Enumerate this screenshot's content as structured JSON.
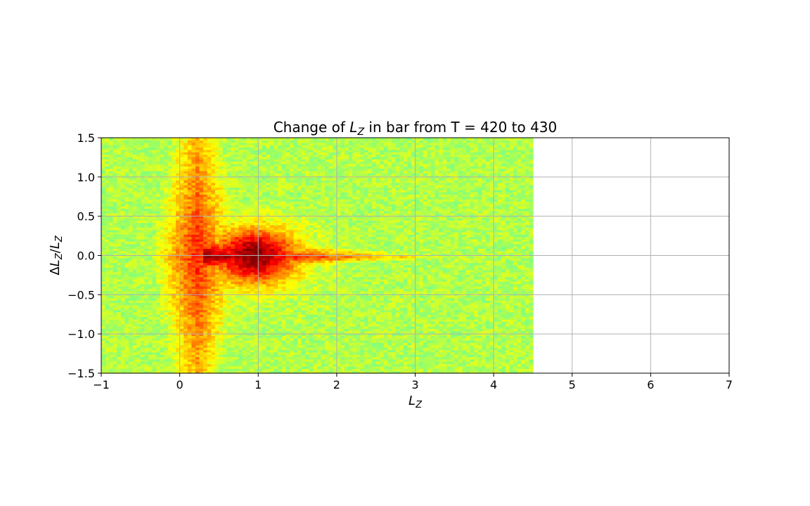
{
  "chart_data": {
    "type": "heatmap",
    "title": {
      "prefix": "Change of ",
      "var": "L",
      "sub": "Z",
      "suffix": " in bar from T = 420 to 430"
    },
    "xlabel": {
      "var": "L",
      "sub": "Z"
    },
    "ylabel": {
      "delta": "Δ",
      "var1": "L",
      "sub1": "Z",
      "slash": "/",
      "var2": "L",
      "sub2": "Z"
    },
    "xlim": [
      -1,
      7
    ],
    "ylim": [
      -1.5,
      1.5
    ],
    "xticks": [
      -1,
      0,
      1,
      2,
      3,
      4,
      5,
      6,
      7
    ],
    "yticks": [
      -1.5,
      -1.0,
      -0.5,
      0.0,
      0.5,
      1.0,
      1.5
    ],
    "xtick_labels": [
      "−1",
      "0",
      "1",
      "2",
      "3",
      "4",
      "5",
      "6",
      "7"
    ],
    "ytick_labels": [
      "−1.5",
      "−1.0",
      "−0.5",
      "0.0",
      "0.5",
      "1.0",
      "1.5"
    ],
    "grid": true,
    "colormap": "jet",
    "bins": {
      "x_width": 0.05,
      "y_width": 0.03
    },
    "density_model": {
      "description_of_shape": "two lobes near Lz 0-0.5 spanning full y range, peak near Lz 1, tail tapering to Lz 4.4 around y 0",
      "max_extent_x": 4.45,
      "min_extent_x": -1.0
    },
    "colors": {
      "grid": "#b0b0b0",
      "axes": "#000000",
      "background": "#ffffff"
    }
  }
}
